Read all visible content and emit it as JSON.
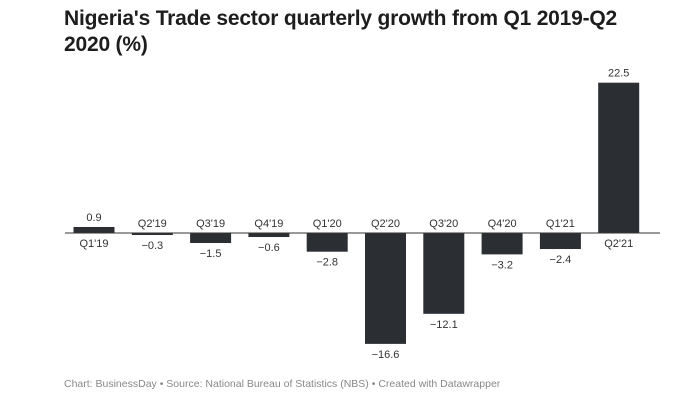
{
  "chart_data": {
    "type": "bar",
    "title": "Nigeria's Trade sector quarterly growth from Q1 2019-Q2 2020 (%)",
    "categories": [
      "Q1'19",
      "Q2'19",
      "Q3'19",
      "Q4'19",
      "Q1'20",
      "Q2'20",
      "Q3'20",
      "Q4'20",
      "Q1'21",
      "Q2'21"
    ],
    "values": [
      0.9,
      -0.3,
      -1.5,
      -0.6,
      -2.8,
      -16.6,
      -12.1,
      -3.2,
      -2.4,
      22.5
    ],
    "value_labels": [
      "0.9",
      "−0.3",
      "−1.5",
      "−0.6",
      "−2.8",
      "−16.6",
      "−12.1",
      "−3.2",
      "−2.4",
      "22.5"
    ],
    "xlabel": "",
    "ylabel": "",
    "grid": false,
    "bar_color": "#2b2f33",
    "footer": "Chart: BusinessDay • Source: National Bureau of Statistics (NBS) • Created with Datawrapper"
  }
}
